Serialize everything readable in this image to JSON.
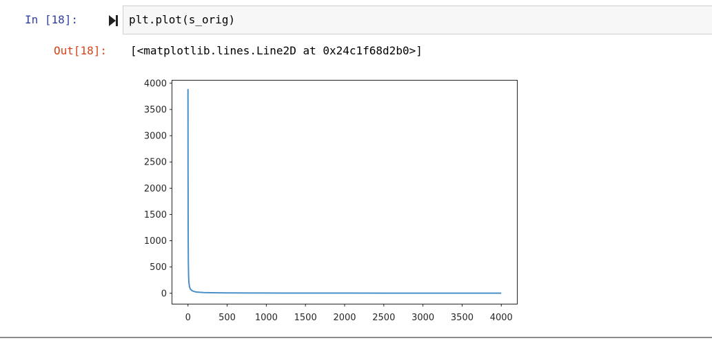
{
  "cell": {
    "in_prompt": "In [18]:",
    "code": "plt.plot(s_orig)",
    "out_prompt": "Out[18]:",
    "output_text": "[<matplotlib.lines.Line2D at 0x24c1f68d2b0>]"
  },
  "colors": {
    "in_prompt": "#303f9f",
    "out_prompt": "#d84315",
    "line": "#4a90c8"
  },
  "icons": {
    "run": "run-cell-icon"
  },
  "chart_data": {
    "type": "line",
    "title": "",
    "xlabel": "",
    "ylabel": "",
    "xlim": [
      -200,
      4200
    ],
    "ylim": [
      -200,
      4050
    ],
    "xticks": [
      0,
      500,
      1000,
      1500,
      2000,
      2500,
      3000,
      3500,
      4000
    ],
    "yticks": [
      0,
      500,
      1000,
      1500,
      2000,
      2500,
      3000,
      3500,
      4000
    ],
    "grid": false,
    "legend": "none",
    "series": [
      {
        "x": [
          0,
          1,
          2,
          3,
          5,
          8,
          12,
          20,
          30,
          50,
          75,
          100,
          150,
          200,
          300,
          500,
          800,
          1200,
          1600,
          2000,
          2500,
          3000,
          3500,
          4000
        ],
        "y": [
          3890,
          2400,
          1500,
          1000,
          560,
          320,
          200,
          120,
          80,
          50,
          35,
          25,
          18,
          14,
          10,
          7,
          5,
          4,
          3,
          3,
          2,
          2,
          2,
          1
        ]
      }
    ]
  }
}
